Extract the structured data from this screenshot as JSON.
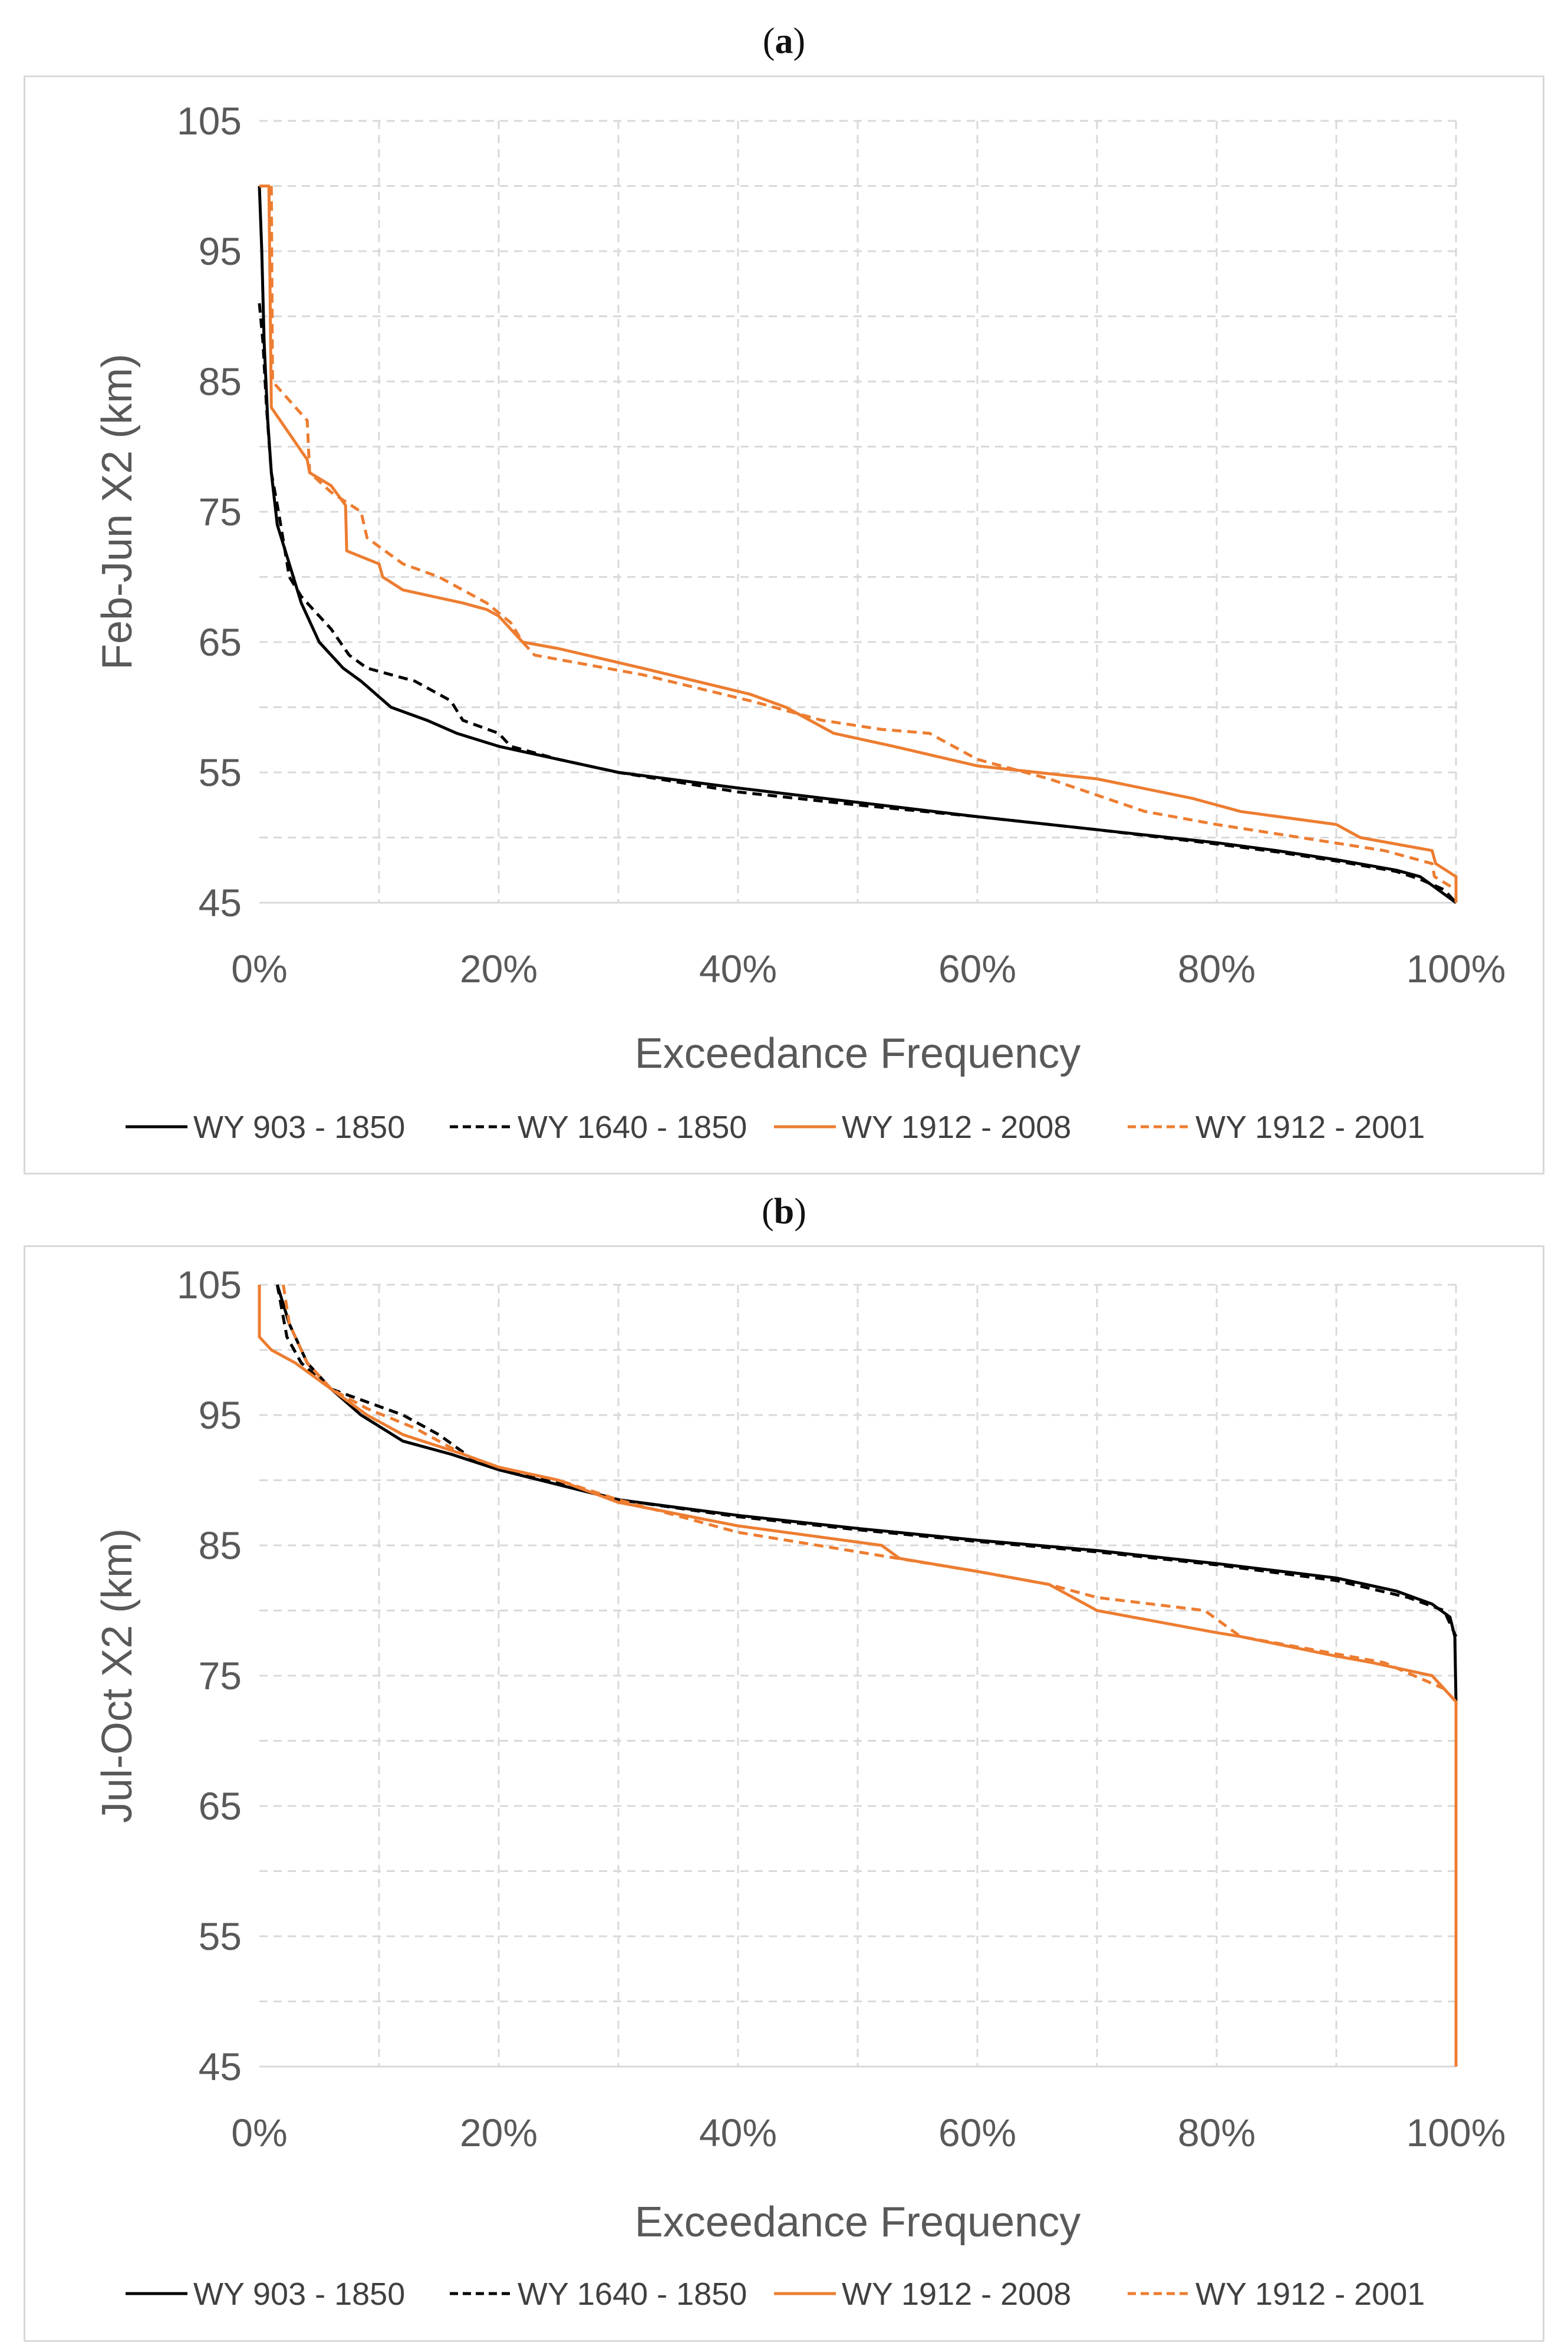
{
  "colors": {
    "black": "#000000",
    "orange": "#ED7D31",
    "grid": "#d9d9d9"
  },
  "panels": [
    {
      "label_open": "(",
      "label_letter": "a",
      "label_close": ")",
      "chart_data": {
        "type": "line",
        "xlabel": "Exceedance Frequency",
        "ylabel": "Feb-Jun X2 (km)",
        "xlim": [
          0,
          100
        ],
        "ylim": [
          45,
          105
        ],
        "x_ticks": [
          "0%",
          "20%",
          "40%",
          "60%",
          "80%",
          "100%"
        ],
        "y_ticks": [
          "105",
          "95",
          "85",
          "75",
          "65",
          "55",
          "45"
        ],
        "grid": true,
        "legend_position": "bottom",
        "series": [
          {
            "name": "WY 903 - 1850",
            "color": "#000000",
            "dash": "solid",
            "points": [
              [
                0,
                100
              ],
              [
                0.2,
                95
              ],
              [
                0.4,
                88
              ],
              [
                0.7,
                82
              ],
              [
                1,
                78
              ],
              [
                1.5,
                74
              ],
              [
                2.5,
                71
              ],
              [
                3.5,
                68
              ],
              [
                5,
                65
              ],
              [
                7,
                63
              ],
              [
                8.5,
                62
              ],
              [
                11,
                60
              ],
              [
                14,
                59
              ],
              [
                16.5,
                58
              ],
              [
                20,
                57
              ],
              [
                25,
                56
              ],
              [
                30,
                55
              ],
              [
                40,
                53.8
              ],
              [
                50,
                52.7
              ],
              [
                60,
                51.6
              ],
              [
                70,
                50.6
              ],
              [
                80,
                49.6
              ],
              [
                85,
                49
              ],
              [
                90,
                48.3
              ],
              [
                95,
                47.5
              ],
              [
                97,
                47
              ],
              [
                98.5,
                46
              ],
              [
                100,
                45
              ]
            ]
          },
          {
            "name": "WY 1640 - 1850",
            "color": "#000000",
            "dash": "dashed",
            "points": [
              [
                0,
                91
              ],
              [
                0.3,
                88
              ],
              [
                0.6,
                83
              ],
              [
                1,
                78
              ],
              [
                1.6,
                75
              ],
              [
                2.5,
                70
              ],
              [
                3.5,
                68.5
              ],
              [
                4.5,
                67.5
              ],
              [
                6,
                66
              ],
              [
                7.5,
                64
              ],
              [
                9,
                63
              ],
              [
                11,
                62.5
              ],
              [
                13,
                62
              ],
              [
                16,
                60.5
              ],
              [
                17,
                59
              ],
              [
                20,
                58
              ],
              [
                21,
                57
              ],
              [
                25,
                56
              ],
              [
                30,
                55
              ],
              [
                40,
                53.5
              ],
              [
                50,
                52.5
              ],
              [
                60,
                51.6
              ],
              [
                70,
                50.6
              ],
              [
                80,
                49.5
              ],
              [
                85,
                48.9
              ],
              [
                90,
                48.2
              ],
              [
                95,
                47.4
              ],
              [
                97,
                46.8
              ],
              [
                99,
                46
              ],
              [
                100,
                45
              ]
            ]
          },
          {
            "name": "WY 1912 - 2008",
            "color": "#ED7D31",
            "dash": "solid",
            "points": [
              [
                0,
                100
              ],
              [
                0.8,
                100
              ],
              [
                1,
                83
              ],
              [
                4,
                79
              ],
              [
                4.2,
                78
              ],
              [
                6,
                77
              ],
              [
                7.2,
                75.5
              ],
              [
                7.3,
                72
              ],
              [
                10,
                71
              ],
              [
                10.3,
                70
              ],
              [
                12,
                69
              ],
              [
                17,
                68
              ],
              [
                19,
                67.5
              ],
              [
                20,
                67
              ],
              [
                22,
                65
              ],
              [
                25,
                64.5
              ],
              [
                32,
                63
              ],
              [
                41,
                61
              ],
              [
                44,
                60
              ],
              [
                48,
                58
              ],
              [
                53,
                57
              ],
              [
                60,
                55.5
              ],
              [
                65,
                55
              ],
              [
                70,
                54.5
              ],
              [
                78,
                53
              ],
              [
                82,
                52
              ],
              [
                90,
                51
              ],
              [
                92,
                50
              ],
              [
                98,
                49
              ],
              [
                98.3,
                48
              ],
              [
                100,
                47
              ],
              [
                100,
                45
              ]
            ]
          },
          {
            "name": "WY 1912 - 2001",
            "color": "#ED7D31",
            "dash": "dashed",
            "points": [
              [
                1,
                100
              ],
              [
                1.1,
                85
              ],
              [
                4,
                82
              ],
              [
                4.2,
                78
              ],
              [
                6,
                76.5
              ],
              [
                8.5,
                75
              ],
              [
                9,
                73
              ],
              [
                12,
                71
              ],
              [
                15,
                70
              ],
              [
                19,
                68
              ],
              [
                21,
                66.5
              ],
              [
                22,
                65
              ],
              [
                23,
                64
              ],
              [
                32,
                62.5
              ],
              [
                41,
                60.5
              ],
              [
                47,
                59
              ],
              [
                52,
                58.3
              ],
              [
                56,
                58
              ],
              [
                58,
                57
              ],
              [
                60,
                56
              ],
              [
                66,
                54.5
              ],
              [
                74,
                52
              ],
              [
                80,
                51
              ],
              [
                87,
                50
              ],
              [
                94,
                49
              ],
              [
                98,
                48
              ],
              [
                98.2,
                47
              ],
              [
                100,
                46
              ],
              [
                100,
                45
              ]
            ]
          }
        ]
      }
    },
    {
      "label_open": "(",
      "label_letter": "b",
      "label_close": ")",
      "chart_data": {
        "type": "line",
        "xlabel": "Exceedance Frequency",
        "ylabel": "Jul-Oct X2 (km)",
        "xlim": [
          0,
          100
        ],
        "ylim": [
          45,
          105
        ],
        "x_ticks": [
          "0%",
          "20%",
          "40%",
          "60%",
          "80%",
          "100%"
        ],
        "y_ticks": [
          "105",
          "95",
          "85",
          "75",
          "65",
          "55",
          "45"
        ],
        "grid": true,
        "legend_position": "bottom",
        "series": [
          {
            "name": "WY 903 - 1850",
            "color": "#000000",
            "dash": "solid",
            "points": [
              [
                1.5,
                105
              ],
              [
                2.5,
                102
              ],
              [
                4,
                99
              ],
              [
                6,
                97
              ],
              [
                8.5,
                95
              ],
              [
                12,
                93
              ],
              [
                16,
                92
              ],
              [
                20,
                90.8
              ],
              [
                30,
                88.5
              ],
              [
                40,
                87.3
              ],
              [
                50,
                86.3
              ],
              [
                60,
                85.4
              ],
              [
                70,
                84.6
              ],
              [
                80,
                83.6
              ],
              [
                90,
                82.5
              ],
              [
                95,
                81.5
              ],
              [
                98,
                80.5
              ],
              [
                99.5,
                79.5
              ],
              [
                99.9,
                78
              ],
              [
                100,
                73
              ]
            ]
          },
          {
            "name": "WY 1640 - 1850",
            "color": "#000000",
            "dash": "dashed",
            "points": [
              [
                1.5,
                105
              ],
              [
                2.3,
                101
              ],
              [
                3.5,
                99
              ],
              [
                6,
                97
              ],
              [
                9,
                96
              ],
              [
                12,
                95
              ],
              [
                15,
                93.5
              ],
              [
                18,
                91.5
              ],
              [
                22,
                90.5
              ],
              [
                30,
                88.5
              ],
              [
                40,
                87.2
              ],
              [
                50,
                86.2
              ],
              [
                60,
                85.3
              ],
              [
                70,
                84.5
              ],
              [
                80,
                83.5
              ],
              [
                90,
                82.3
              ],
              [
                96,
                81
              ],
              [
                99,
                80
              ],
              [
                100,
                78
              ]
            ]
          },
          {
            "name": "WY 1912 - 2008",
            "color": "#ED7D31",
            "dash": "solid",
            "points": [
              [
                0,
                105
              ],
              [
                0,
                101
              ],
              [
                1,
                100
              ],
              [
                3,
                99
              ],
              [
                6,
                97
              ],
              [
                9,
                95
              ],
              [
                12,
                93.5
              ],
              [
                17,
                92
              ],
              [
                20,
                91
              ],
              [
                25,
                90
              ],
              [
                30,
                88.3
              ],
              [
                40,
                86.5
              ],
              [
                52,
                85
              ],
              [
                53.5,
                84
              ],
              [
                60,
                83
              ],
              [
                66,
                82
              ],
              [
                70,
                80
              ],
              [
                80,
                78.3
              ],
              [
                82,
                78
              ],
              [
                90,
                76.5
              ],
              [
                93,
                76
              ],
              [
                98,
                75
              ],
              [
                100,
                73
              ],
              [
                100,
                45
              ]
            ]
          },
          {
            "name": "WY 1912 - 2001",
            "color": "#ED7D31",
            "dash": "dashed",
            "points": [
              [
                2,
                105
              ],
              [
                2.5,
                102
              ],
              [
                4,
                99
              ],
              [
                6,
                97
              ],
              [
                9,
                95.5
              ],
              [
                13,
                94
              ],
              [
                17,
                92
              ],
              [
                20,
                91
              ],
              [
                25,
                90
              ],
              [
                30,
                88.5
              ],
              [
                40,
                86
              ],
              [
                50,
                84.5
              ],
              [
                60,
                83
              ],
              [
                66,
                82
              ],
              [
                70,
                81
              ],
              [
                79,
                80
              ],
              [
                82,
                78
              ],
              [
                88,
                77
              ],
              [
                94,
                76
              ],
              [
                99,
                74
              ],
              [
                100,
                73
              ]
            ]
          }
        ]
      }
    }
  ]
}
